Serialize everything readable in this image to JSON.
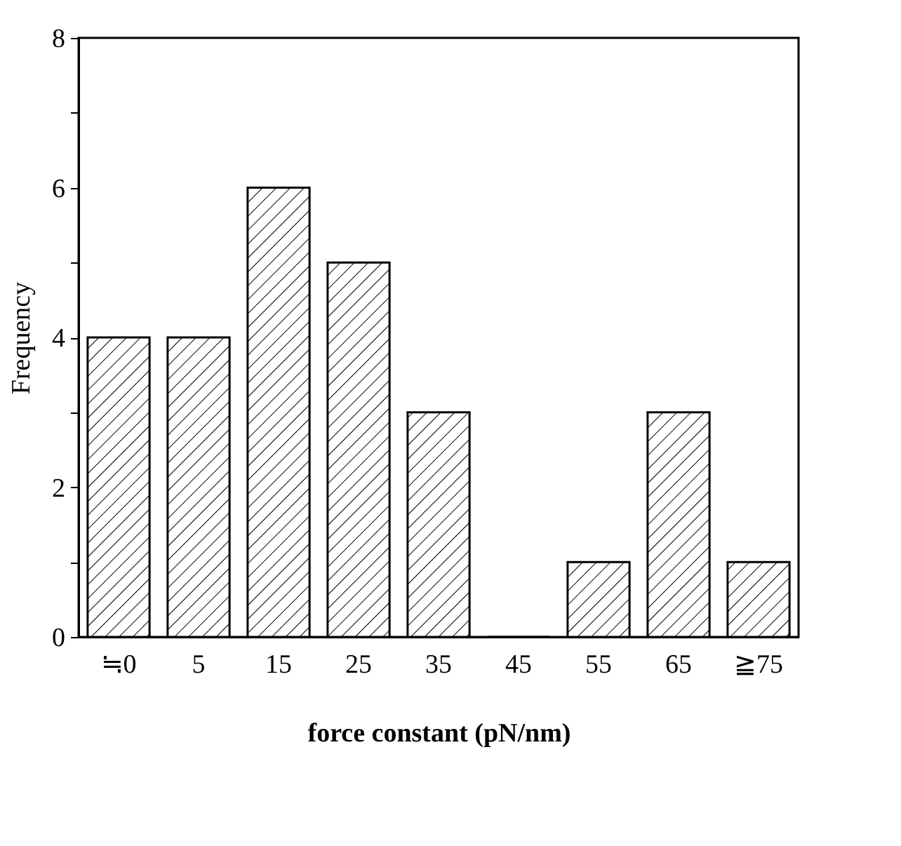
{
  "chart_data": {
    "type": "bar",
    "xlabel": "force constant (pN/nm)",
    "ylabel": "Frequency",
    "categories": [
      "≒0",
      "5",
      "15",
      "25",
      "35",
      "45",
      "55",
      "65",
      "≧75"
    ],
    "values": [
      4,
      4,
      6,
      5,
      3,
      0,
      1,
      3,
      1
    ],
    "color": "#000000",
    "ylim": [
      0,
      8
    ],
    "yticks": [
      0,
      {
        "value": 1,
        "label": null
      },
      2,
      {
        "value": 3,
        "label": null
      },
      4,
      {
        "value": 5,
        "label": null
      },
      6,
      {
        "value": 7,
        "label": null
      },
      8
    ],
    "grid": false
  }
}
